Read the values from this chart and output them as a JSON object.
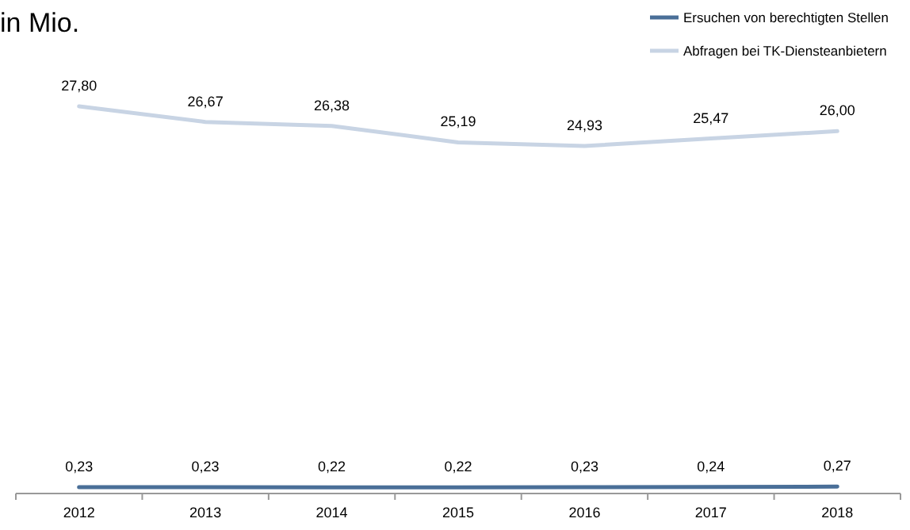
{
  "chart_data": {
    "type": "line",
    "ylabel": "in Mio.",
    "categories": [
      "2012",
      "2013",
      "2014",
      "2015",
      "2016",
      "2017",
      "2018"
    ],
    "tick_labels": "x",
    "legend": "top right",
    "marker": "none",
    "line_style": "solid",
    "series": [
      {
        "name": "Ersuchen von berechtigten Stellen",
        "color": "#4a6f98",
        "values": [
          0.23,
          0.23,
          0.22,
          0.22,
          0.23,
          0.24,
          0.27
        ],
        "value_labels": [
          "0,23",
          "0,23",
          "0,22",
          "0,22",
          "0,23",
          "0,24",
          "0,27"
        ]
      },
      {
        "name": "Abfragen bei TK-Diensteanbietern",
        "color": "#c8d4e4",
        "values": [
          27.8,
          26.67,
          26.38,
          25.19,
          24.93,
          25.47,
          26.0
        ],
        "value_labels": [
          "27,80",
          "26,67",
          "26,38",
          "25,19",
          "24,93",
          "25,47",
          "26,00"
        ]
      }
    ]
  }
}
